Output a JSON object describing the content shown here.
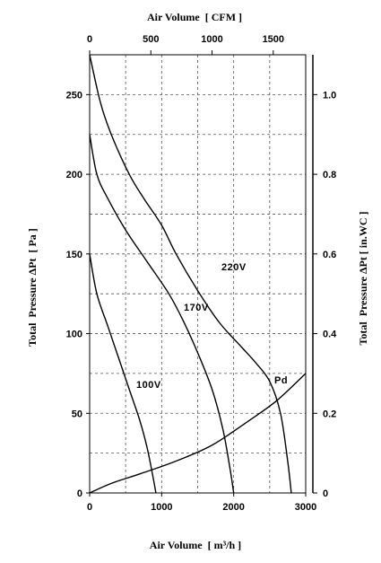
{
  "chart_data": {
    "type": "line",
    "top_axis": {
      "label": "Air Volume  [ CFM ]",
      "ticks": [
        0,
        500,
        1000,
        1500
      ],
      "range": [
        0,
        1765
      ]
    },
    "bottom_axis": {
      "label": "Air Volume  [ m³/h ]",
      "ticks": [
        0,
        1000,
        2000,
        3000
      ],
      "range": [
        0,
        3000
      ]
    },
    "left_axis": {
      "label": "Total  Pressure ΔPt  [ Pa ]",
      "ticks": [
        0,
        50,
        100,
        150,
        200,
        250
      ],
      "range": [
        0,
        275
      ]
    },
    "right_axis": {
      "label": "Total  Pressure ΔPt [ in.WC ]",
      "ticks": [
        "0",
        "0.2",
        "0.4",
        "0.6",
        "0.8",
        "1.0"
      ],
      "range": [
        0,
        1.1
      ]
    },
    "grid": true,
    "series": [
      {
        "name": "220V",
        "x": [
          0,
          150,
          300,
          550,
          750,
          1000,
          1200,
          1500,
          1800,
          2100,
          2300,
          2500,
          2650,
          2750,
          2800
        ],
        "y": [
          275,
          245,
          225,
          200,
          185,
          168,
          150,
          127,
          107,
          92,
          82,
          70,
          50,
          20,
          0
        ]
      },
      {
        "name": "170V",
        "x": [
          0,
          100,
          250,
          500,
          800,
          1100,
          1300,
          1500,
          1700,
          1850,
          1950,
          2000
        ],
        "y": [
          225,
          200,
          185,
          165,
          145,
          125,
          108,
          88,
          65,
          40,
          15,
          0
        ]
      },
      {
        "name": "100V",
        "x": [
          0,
          100,
          250,
          400,
          550,
          700,
          800,
          880,
          920
        ],
        "y": [
          150,
          125,
          105,
          85,
          65,
          45,
          28,
          10,
          0
        ]
      },
      {
        "name": "Pd",
        "x": [
          0,
          300,
          700,
          1200,
          1700,
          2200,
          2600,
          3000
        ],
        "y": [
          0,
          6,
          12,
          20,
          30,
          45,
          58,
          75
        ]
      }
    ]
  }
}
